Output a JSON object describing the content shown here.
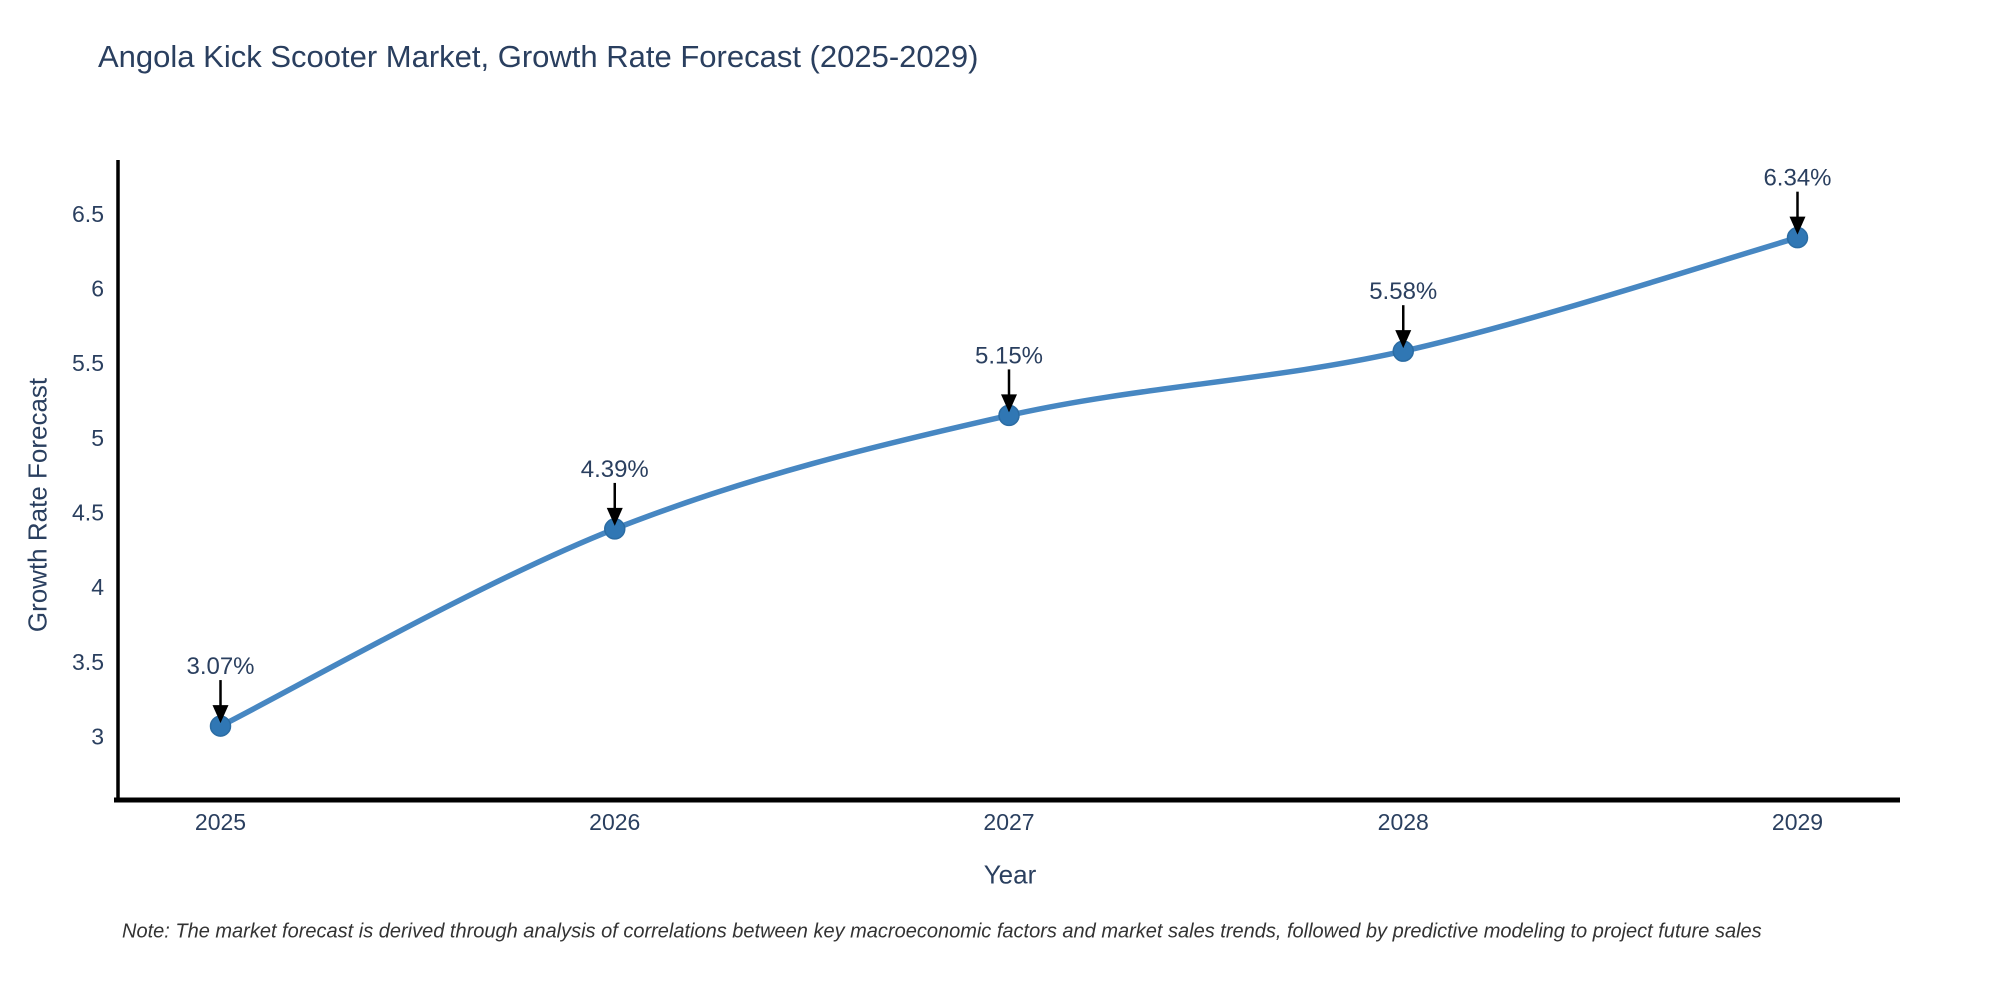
{
  "chart_data": {
    "type": "line",
    "title": "Angola Kick Scooter Market, Growth Rate Forecast (2025-2029)",
    "xlabel": "Year",
    "ylabel": "Growth Rate Forecast",
    "x": [
      2025,
      2026,
      2027,
      2028,
      2029
    ],
    "xticks": [
      "2025",
      "2026",
      "2027",
      "2028",
      "2029"
    ],
    "series": [
      {
        "name": "Growth Rate Forecast",
        "values": [
          3.07,
          4.39,
          5.15,
          5.58,
          6.34
        ]
      }
    ],
    "point_labels": [
      "3.07%",
      "4.39%",
      "5.15%",
      "5.58%",
      "6.34%"
    ],
    "ytick_values": [
      3,
      3.5,
      4,
      4.5,
      5,
      5.5,
      6,
      6.5
    ],
    "yticks": [
      "3",
      "3.5",
      "4",
      "4.5",
      "5",
      "5.5",
      "6",
      "6.5"
    ],
    "ylim": [
      2.575,
      6.86
    ],
    "xlim": [
      2024.74,
      2029.26
    ],
    "line_shape": "spline",
    "layout_hints": {
      "grid": false,
      "legend": "none",
      "annotations": "value labels with down arrows above each point"
    },
    "colors": {
      "line": "#4787c2",
      "marker": "#3077b4",
      "marker_edge": "#2b6ca3",
      "arrow": "#000000",
      "text": "#2a3f5f",
      "axis": "#000000",
      "note_text": "#333333",
      "background": "#ffffff"
    },
    "note": "Note: The market forecast is derived through analysis of correlations between key macroeconomic factors and market sales trends, followed by predictive modeling to project future sales"
  }
}
